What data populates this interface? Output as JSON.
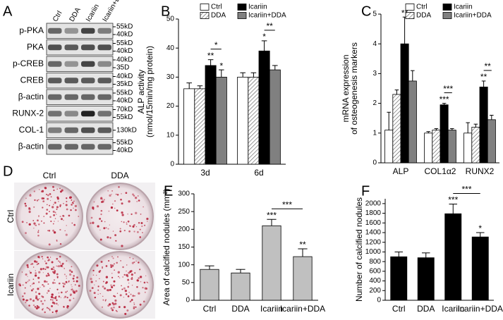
{
  "panel_labels": [
    "A",
    "B",
    "C",
    "D",
    "E",
    "F"
  ],
  "blot": {
    "columns": [
      "Ctrl",
      "DDA",
      "Icariin",
      "Icariin+DDA"
    ],
    "rows": [
      {
        "label": "p-PKA",
        "markers": [
          "55kD",
          "40kD"
        ]
      },
      {
        "label": "PKA",
        "markers": [
          "55kD",
          "40kD"
        ]
      },
      {
        "label": "p-CREB",
        "markers": [
          "40kD",
          "35D"
        ]
      },
      {
        "label": "CREB",
        "markers": [
          "40kD",
          "35kD"
        ]
      },
      {
        "label": "β-actin",
        "markers": [
          "55kD",
          "40kD"
        ]
      },
      {
        "label": "RUNX-2",
        "markers": [
          "70kD",
          "55kD"
        ]
      },
      {
        "label": "COL-1",
        "markers": [
          "130kD"
        ]
      },
      {
        "label": "β-actin",
        "markers": [
          "55kD",
          "40kD"
        ]
      }
    ]
  },
  "staining": {
    "columns": [
      "Ctrl",
      "DDA"
    ],
    "rows": [
      "Ctrl",
      "Icariin"
    ]
  },
  "chart_data": [
    {
      "type": "bar",
      "ylabel": [
        "ALP activity",
        "(nmol/15min/mg protein)"
      ],
      "categories": [
        "3d",
        "6d"
      ],
      "series": [
        {
          "name": "Ctrl",
          "color": "#ffffff",
          "values": [
            26,
            30
          ],
          "errors": [
            2,
            1.5
          ]
        },
        {
          "name": "DDA",
          "color": "#ffffff",
          "pattern": "hatch",
          "values": [
            26,
            30
          ],
          "errors": [
            1,
            1.5
          ]
        },
        {
          "name": "Icariin",
          "color": "#000000",
          "values": [
            34,
            39
          ],
          "errors": [
            2,
            3.5
          ]
        },
        {
          "name": "Icariin+DDA",
          "color": "#808080",
          "values": [
            30,
            32.5
          ],
          "errors": [
            2.5,
            1.5
          ]
        }
      ],
      "ylim": [
        0,
        50
      ],
      "yticks": [
        0,
        10,
        20,
        30,
        40,
        50
      ],
      "stars": [
        {
          "label": "**",
          "series": 2,
          "category": 0
        },
        {
          "label": "*",
          "series": 3,
          "category": 0
        },
        {
          "label": "*",
          "series": 2,
          "category": 1
        }
      ],
      "brackets": [
        {
          "label": "*",
          "from": 2,
          "to": 3,
          "category": 0
        },
        {
          "label": "**",
          "from": 2,
          "to": 3,
          "category": 1
        }
      ]
    },
    {
      "type": "bar",
      "ylabel": [
        "mRNA expression",
        "of osteogenesis markers"
      ],
      "categories": [
        "ALP",
        "COL1α2",
        "RUNX2"
      ],
      "series": [
        {
          "name": "Ctrl",
          "color": "#ffffff",
          "values": [
            1.1,
            1.0,
            1.0
          ],
          "errors": [
            0.6,
            0.05,
            0.35
          ]
        },
        {
          "name": "DDA",
          "color": "#ffffff",
          "pattern": "hatch",
          "values": [
            2.3,
            1.1,
            1.2
          ],
          "errors": [
            0.15,
            0.05,
            0.1
          ]
        },
        {
          "name": "Icariin",
          "color": "#000000",
          "values": [
            4.0,
            1.95,
            2.55
          ],
          "errors": [
            0.9,
            0.05,
            0.2
          ]
        },
        {
          "name": "Icariin+DDA",
          "color": "#808080",
          "values": [
            2.75,
            1.1,
            1.45
          ],
          "errors": [
            0.35,
            0.05,
            0.15
          ]
        }
      ],
      "ylim": [
        0,
        5
      ],
      "yticks": [
        0,
        1,
        2,
        3,
        4,
        5
      ],
      "stars": [
        {
          "label": "**",
          "series": 2,
          "category": 0
        },
        {
          "label": "***",
          "series": 2,
          "category": 1
        },
        {
          "label": "**",
          "series": 2,
          "category": 2
        }
      ],
      "brackets": [
        {
          "label": "***",
          "from": 2,
          "to": 3,
          "category": 1
        },
        {
          "label": "**",
          "from": 2,
          "to": 3,
          "category": 2
        }
      ]
    },
    {
      "type": "bar",
      "ylabel": [
        "Area of calcified nodules (mm²)"
      ],
      "categories": [
        "Ctrl",
        "DDA",
        "Icariin",
        "Icariin+DDA"
      ],
      "values": [
        87,
        77,
        210,
        123
      ],
      "errors": [
        10,
        10,
        18,
        22
      ],
      "color": "#c0c0c0",
      "ylim": [
        0,
        300
      ],
      "yticks": [
        0,
        50,
        100,
        150,
        200,
        250,
        300
      ],
      "stars": [
        {
          "label": "***",
          "category": 2
        },
        {
          "label": "**",
          "category": 3
        }
      ],
      "brackets": [
        {
          "label": "***",
          "from": 2,
          "to": 3
        }
      ]
    },
    {
      "type": "bar",
      "ylabel": [
        "Number of calcified nodules"
      ],
      "categories": [
        "Ctrl",
        "DDA",
        "Icariin",
        "Icariin+DDA"
      ],
      "values": [
        900,
        880,
        1790,
        1310
      ],
      "errors": [
        100,
        100,
        200,
        90
      ],
      "color": "#000000",
      "ylim": [
        0,
        2100
      ],
      "yticks": [
        0,
        200,
        400,
        600,
        800,
        1000,
        1200,
        1400,
        1600,
        1800,
        2000
      ],
      "stars": [
        {
          "label": "***",
          "category": 2
        },
        {
          "label": "*",
          "category": 3
        }
      ],
      "brackets": [
        {
          "label": "***",
          "from": 2,
          "to": 3
        }
      ]
    }
  ]
}
